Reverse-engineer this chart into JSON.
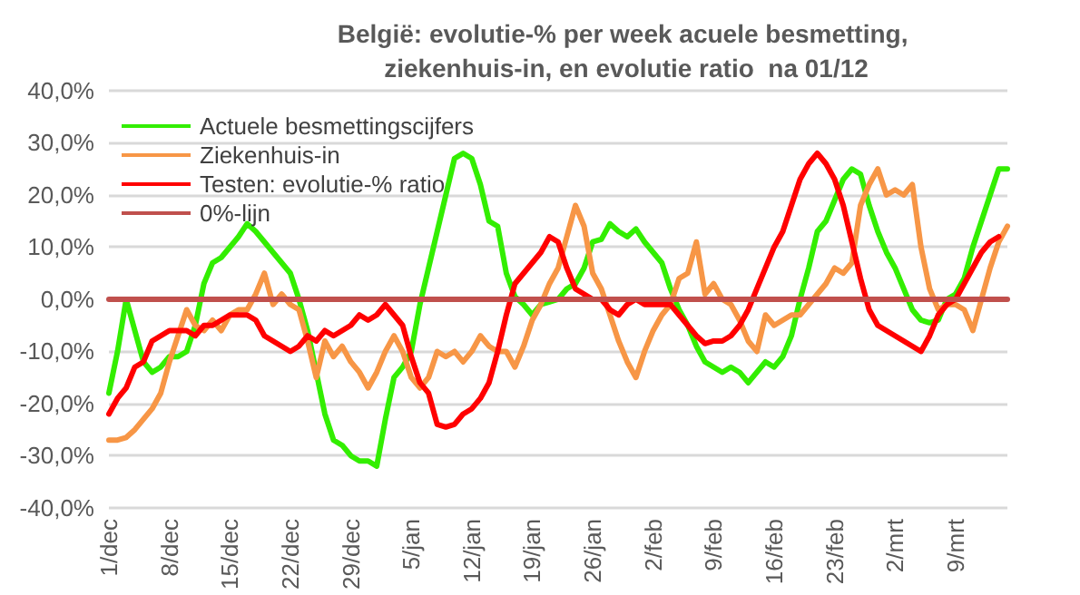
{
  "chart_data": {
    "type": "line",
    "title": "België: evolutie-% per week acuele besmetting, ziekenhuis-in, en evolutie ratio  na 01/12",
    "categories": [
      "1/dec",
      null,
      null,
      null,
      null,
      null,
      null,
      "8/dec",
      null,
      null,
      null,
      null,
      null,
      null,
      "15/dec",
      null,
      null,
      null,
      null,
      null,
      null,
      "22/dec",
      null,
      null,
      null,
      null,
      null,
      null,
      "29/dec",
      null,
      null,
      null,
      null,
      null,
      null,
      "5/jan",
      null,
      null,
      null,
      null,
      null,
      null,
      "12/jan",
      null,
      null,
      null,
      null,
      null,
      null,
      "19/jan",
      null,
      null,
      null,
      null,
      null,
      null,
      "26/jan",
      null,
      null,
      null,
      null,
      null,
      null,
      "2/feb",
      null,
      null,
      null,
      null,
      null,
      null,
      "9/feb",
      null,
      null,
      null,
      null,
      null,
      null,
      "16/feb",
      null,
      null,
      null,
      null,
      null,
      null,
      "23/feb",
      null,
      null,
      null,
      null,
      null,
      null,
      "2/mrt",
      null,
      null,
      null,
      null,
      null,
      null,
      "9/mrt",
      null,
      null,
      null,
      null,
      null,
      null
    ],
    "series": [
      {
        "name": "Actuele besmettingscijfers",
        "color": "#33ee00",
        "values": [
          -18,
          -10,
          0,
          -6,
          -12,
          -14,
          -13,
          -11,
          -11,
          -10,
          -5,
          3,
          7,
          8,
          10,
          12,
          14.5,
          13,
          11,
          9,
          7,
          5,
          0,
          -6,
          -14,
          -22,
          -27,
          -28,
          -30,
          -31,
          -31,
          -32,
          -23,
          -15,
          -13,
          -10,
          -1,
          6,
          13,
          20,
          27,
          28,
          27,
          22,
          15,
          14,
          5,
          0.5,
          -1,
          -3,
          -1,
          -0.5,
          0,
          2,
          3,
          6,
          11,
          11.5,
          14.5,
          13,
          12,
          13.5,
          11,
          9,
          7,
          2,
          -2,
          -5,
          -9,
          -12,
          -13,
          -14,
          -13,
          -14,
          -16,
          -14,
          -12,
          -13,
          -11,
          -7,
          0,
          6,
          13,
          15,
          19,
          23,
          25,
          24,
          18,
          13,
          9,
          6,
          2,
          -2,
          -4,
          -4.5,
          -4,
          0,
          1,
          4,
          10,
          15,
          20,
          25,
          25
        ]
      },
      {
        "name": "Ziekenhuis-in",
        "color": "#f79646",
        "values": [
          -27,
          -27,
          -26.5,
          -25,
          -23,
          -21,
          -18,
          -12,
          -7,
          -2,
          -5,
          -6,
          -4,
          -6,
          -3,
          -2,
          -2,
          1,
          5,
          -1,
          1,
          -1,
          -2,
          -8,
          -15,
          -8,
          -11,
          -9,
          -12,
          -14,
          -17,
          -14,
          -10,
          -7,
          -10,
          -15,
          -17,
          -15,
          -10,
          -11,
          -10,
          -12,
          -10,
          -7,
          -9,
          -10,
          -10,
          -13,
          -9,
          -4,
          -1,
          3,
          6,
          12,
          18,
          14,
          5,
          2,
          -3,
          -8,
          -12,
          -15,
          -10,
          -6,
          -3,
          -1,
          4,
          5,
          11,
          1,
          3,
          0,
          -1,
          -4,
          -8,
          -10,
          -3,
          -5,
          -4,
          -3,
          -3,
          -1,
          1,
          3,
          6,
          5,
          7,
          18,
          22,
          25,
          20,
          21,
          20,
          22,
          10,
          2,
          -2,
          -1,
          -1,
          -2,
          -6,
          0,
          6,
          11,
          14
        ]
      },
      {
        "name": "Testen: evolutie-% ratio",
        "color": "#ff0000",
        "values": [
          -22,
          -19,
          -17,
          -13,
          -12,
          -8,
          -7,
          -6,
          -6,
          -6,
          -7,
          -5,
          -5,
          -4,
          -3,
          -3,
          -3,
          -4,
          -7,
          -8,
          -9,
          -10,
          -9,
          -7,
          -8,
          -6,
          -7,
          -6,
          -5,
          -3,
          -4,
          -3,
          -1,
          -3,
          -5,
          -11,
          -16,
          -18,
          -24,
          -24.5,
          -24,
          -22,
          -21,
          -19,
          -16,
          -10,
          -3,
          3,
          5,
          7,
          9,
          12,
          11,
          6,
          2,
          1,
          0,
          0,
          -2,
          -3,
          -1,
          0,
          -1,
          -1,
          -1,
          -1,
          -3,
          -5,
          -7,
          -8.5,
          -8,
          -8,
          -7,
          -5,
          -2,
          2,
          6,
          10,
          13,
          18,
          23,
          26,
          28,
          26,
          23,
          18,
          11,
          4,
          -2,
          -5,
          -6,
          -7,
          -8,
          -9,
          -10,
          -7,
          -3,
          -1,
          0,
          3,
          6,
          9,
          11,
          12,
          null
        ]
      },
      {
        "name": "0%-lijn",
        "color": "#c0504d",
        "values": [
          0,
          0,
          0,
          0,
          0,
          0,
          0,
          0,
          0,
          0,
          0,
          0,
          0,
          0,
          0,
          0,
          0,
          0,
          0,
          0,
          0,
          0,
          0,
          0,
          0,
          0,
          0,
          0,
          0,
          0,
          0,
          0,
          0,
          0,
          0,
          0,
          0,
          0,
          0,
          0,
          0,
          0,
          0,
          0,
          0,
          0,
          0,
          0,
          0,
          0,
          0,
          0,
          0,
          0,
          0,
          0,
          0,
          0,
          0,
          0,
          0,
          0,
          0,
          0,
          0,
          0,
          0,
          0,
          0,
          0,
          0,
          0,
          0,
          0,
          0,
          0,
          0,
          0,
          0,
          0,
          0,
          0,
          0,
          0,
          0,
          0,
          0,
          0,
          0,
          0,
          0,
          0,
          0,
          0,
          0,
          0,
          0,
          0,
          0,
          0,
          0,
          0,
          0,
          0,
          0
        ]
      }
    ],
    "ylim": [
      -40,
      40
    ],
    "yticks": [
      {
        "value": -40,
        "label": "-40,0%"
      },
      {
        "value": -30,
        "label": "-30,0%"
      },
      {
        "value": -20,
        "label": "-20,0%"
      },
      {
        "value": -10,
        "label": "-10,0%"
      },
      {
        "value": 0,
        "label": "0,0%"
      },
      {
        "value": 10,
        "label": "10,0%"
      },
      {
        "value": 20,
        "label": "20,0%"
      },
      {
        "value": 30,
        "label": "30,0%"
      },
      {
        "value": 40,
        "label": "40,0%"
      }
    ],
    "grid": "y",
    "legend": "top left",
    "marker": "none",
    "line_style": "solid"
  }
}
